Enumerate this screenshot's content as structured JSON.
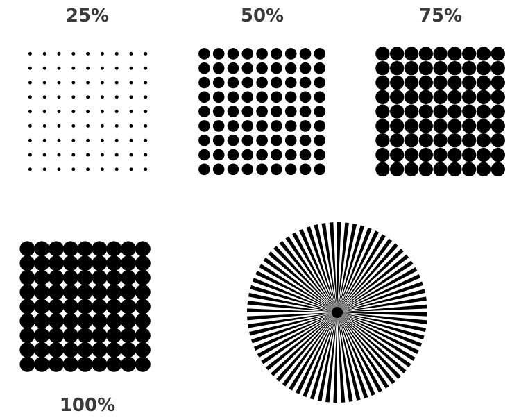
{
  "panels": [
    {
      "id": "p25",
      "label": "25%",
      "coverage": 0.25
    },
    {
      "id": "p50",
      "label": "50%",
      "coverage": 0.5
    },
    {
      "id": "p75",
      "label": "75%",
      "coverage": 0.75
    },
    {
      "id": "p100",
      "label": "100%",
      "coverage": 1.0
    }
  ],
  "dot_grid": {
    "rows": 9,
    "cols": 9
  },
  "starburst": {
    "spokes": 72
  },
  "colors": {
    "dot": "#000000",
    "label": "#3a3a3a",
    "background": "#ffffff"
  }
}
